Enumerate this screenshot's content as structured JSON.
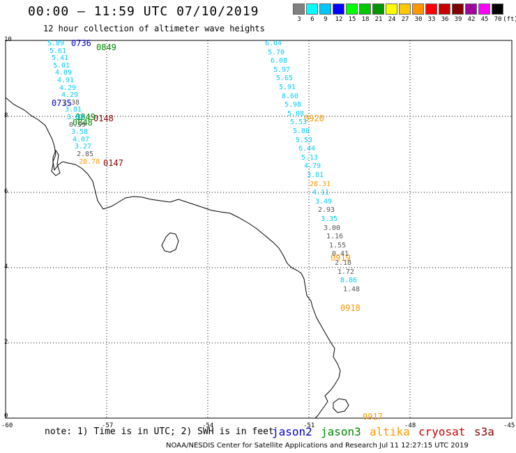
{
  "title": "00:00 – 11:59 UTC 07/10/2019",
  "subtitle": "12 hour collection of altimeter wave heights",
  "scale": {
    "unit": "(ft)",
    "values": [
      "3",
      "6",
      "9",
      "12",
      "15",
      "18",
      "21",
      "24",
      "27",
      "30",
      "33",
      "36",
      "39",
      "42",
      "45",
      "70"
    ],
    "colors": [
      "#808080",
      "#00ffff",
      "#00c8ff",
      "#0000ff",
      "#00ff00",
      "#00c800",
      "#009600",
      "#ffff00",
      "#ffc800",
      "#ff9600",
      "#ff0000",
      "#c80000",
      "#820000",
      "#a000a0",
      "#ff00ff",
      "#000000"
    ]
  },
  "axes": {
    "x_ticks": [
      "-60",
      "-57",
      "-54",
      "-51",
      "-48",
      "-45"
    ],
    "y_ticks": [
      "10",
      "8",
      "6",
      "4",
      "2",
      "0"
    ]
  },
  "note": "note: 1) Time is in UTC; 2) SWH is in feet",
  "legend": [
    {
      "label": "jason2",
      "color": "#0000cc"
    },
    {
      "label": "jason3",
      "color": "#008800"
    },
    {
      "label": "altika",
      "color": "#ff9900"
    },
    {
      "label": "cryosat",
      "color": "#cc0000"
    },
    {
      "label": "s3a",
      "color": "#880000"
    }
  ],
  "credit": "NOAA/NESDIS Center for Satellite Applications and Research   Jul 11 12:27:15 UTC 2019",
  "satellite_colors": {
    "jason2": "#0000cc",
    "jason3": "#008800",
    "altika": "#ff9900",
    "cryosat": "#cc0000",
    "s3a": "#880000"
  },
  "wave_colors": {
    "cyan": "#00ccff",
    "gray": "#555555",
    "orange": "#ff9900",
    "blue": "#0000cc"
  },
  "passes": [
    {
      "id": "0736",
      "sat": "jason2"
    },
    {
      "id": "0849",
      "sat": "jason3"
    },
    {
      "id": "0735",
      "sat": "jason2"
    },
    {
      "id": "0148",
      "sat": "s3a"
    },
    {
      "id": "0849",
      "sat": "jason3"
    },
    {
      "id": "0848",
      "sat": "jason3"
    },
    {
      "id": "0147",
      "sat": "s3a"
    },
    {
      "id": "0920",
      "sat": "altika"
    },
    {
      "id": "0919",
      "sat": "altika"
    },
    {
      "id": "0918",
      "sat": "altika"
    },
    {
      "id": "0917",
      "sat": "altika"
    }
  ],
  "tracks": {
    "west": [
      {
        "v": "5.89",
        "c": "cyan"
      },
      {
        "v": "5.61",
        "c": "cyan"
      },
      {
        "v": "5.41",
        "c": "cyan"
      },
      {
        "v": "5.01",
        "c": "cyan"
      },
      {
        "v": "4.89",
        "c": "cyan"
      },
      {
        "v": "4.91",
        "c": "cyan"
      },
      {
        "v": "4.29",
        "c": "cyan"
      },
      {
        "v": "4.29",
        "c": "cyan"
      },
      {
        "v": "1.38",
        "c": "gray"
      },
      {
        "v": "3.81",
        "c": "cyan"
      },
      {
        "v": "3.83",
        "c": "cyan"
      },
      {
        "v": "0.59",
        "c": "gray"
      },
      {
        "v": "3.58",
        "c": "cyan"
      },
      {
        "v": "4.07",
        "c": "cyan"
      },
      {
        "v": "3.27",
        "c": "cyan"
      },
      {
        "v": "2.85",
        "c": "gray"
      },
      {
        "v": "28.78",
        "c": "orange"
      }
    ],
    "east": [
      {
        "v": "6.04",
        "c": "cyan"
      },
      {
        "v": "5.70",
        "c": "cyan"
      },
      {
        "v": "6.08",
        "c": "cyan"
      },
      {
        "v": "5.97",
        "c": "cyan"
      },
      {
        "v": "5.65",
        "c": "cyan"
      },
      {
        "v": "5.91",
        "c": "cyan"
      },
      {
        "v": "8.60",
        "c": "cyan"
      },
      {
        "v": "5.98",
        "c": "cyan"
      },
      {
        "v": "5.08",
        "c": "cyan"
      },
      {
        "v": "5.53",
        "c": "cyan"
      },
      {
        "v": "5.88",
        "c": "cyan"
      },
      {
        "v": "5.53",
        "c": "cyan"
      },
      {
        "v": "6.44",
        "c": "cyan"
      },
      {
        "v": "5.13",
        "c": "cyan"
      },
      {
        "v": "4.79",
        "c": "cyan"
      },
      {
        "v": "3.81",
        "c": "cyan"
      },
      {
        "v": "28.31",
        "c": "orange"
      },
      {
        "v": "4.11",
        "c": "cyan"
      },
      {
        "v": "3.49",
        "c": "cyan"
      },
      {
        "v": "2.93",
        "c": "gray"
      },
      {
        "v": "3.35",
        "c": "cyan"
      },
      {
        "v": "3.00",
        "c": "gray"
      },
      {
        "v": "1.16",
        "c": "gray"
      },
      {
        "v": "1.55",
        "c": "gray"
      },
      {
        "v": "0.41",
        "c": "gray"
      },
      {
        "v": "2.18",
        "c": "gray"
      },
      {
        "v": "1.72",
        "c": "gray"
      },
      {
        "v": "8.86",
        "c": "cyan"
      },
      {
        "v": "1.48",
        "c": "gray"
      }
    ]
  }
}
